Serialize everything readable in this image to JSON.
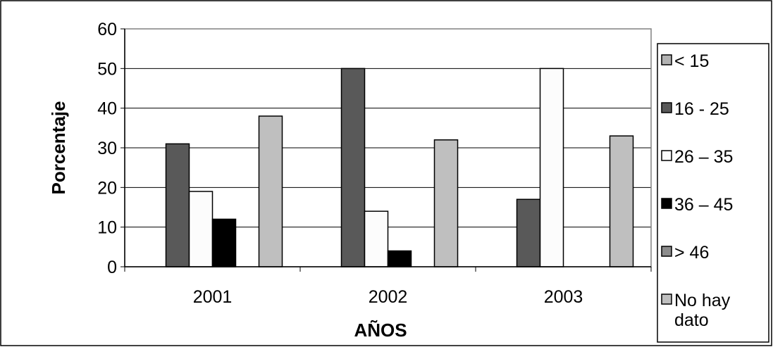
{
  "chart_data": {
    "type": "bar",
    "title": "",
    "xlabel": "AÑOS",
    "ylabel": "Porcentaje",
    "categories": [
      "2001",
      "2002",
      "2003"
    ],
    "ylim": [
      0,
      60
    ],
    "yticks": [
      "0",
      "10",
      "20",
      "30",
      "40",
      "50",
      "60"
    ],
    "grid": true,
    "legend_position": "right",
    "series": [
      {
        "name": "< 15",
        "color": "#b3b3b3",
        "values": [
          0,
          0,
          0
        ]
      },
      {
        "name": "16 - 25",
        "color": "#595959",
        "values": [
          31,
          50,
          17
        ]
      },
      {
        "name": "26 – 35",
        "color": "#fcfcfc",
        "values": [
          19,
          14,
          50
        ]
      },
      {
        "name": "36 – 45",
        "color": "#000000",
        "values": [
          12,
          4,
          0
        ]
      },
      {
        "name": "> 46",
        "color": "#8c8c8c",
        "values": [
          0,
          0,
          0
        ]
      },
      {
        "name": "No hay dato",
        "color": "#bfbfbf",
        "values": [
          38,
          32,
          33
        ]
      }
    ]
  }
}
